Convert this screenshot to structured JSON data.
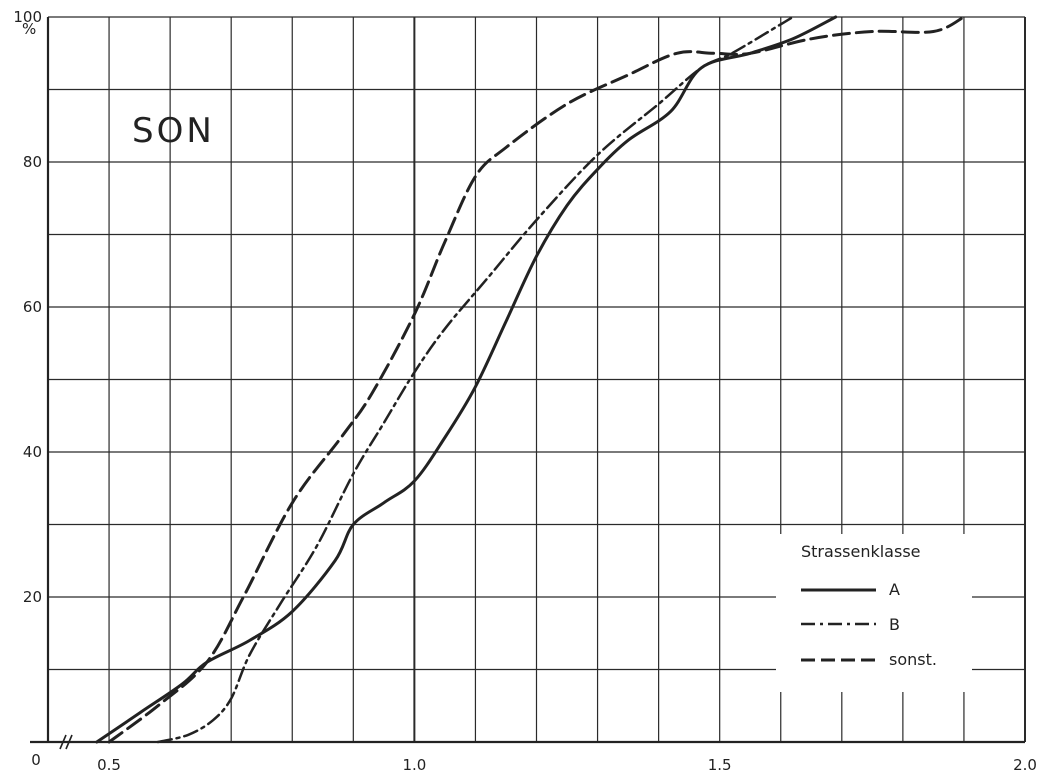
{
  "chart_data": {
    "type": "line",
    "tag": "SON",
    "y_unit": "%",
    "xlim": [
      0.4,
      2.0
    ],
    "ylim": [
      0,
      100
    ],
    "x_ticks": [
      "0.5",
      "1.0",
      "1.5",
      "2.0"
    ],
    "x_origin_label": "0",
    "y_ticks": [
      "20",
      "40",
      "60",
      "80",
      "100"
    ],
    "y_origin_label": "0",
    "grid": true,
    "legend_position": "bottom-right",
    "legend_title": "Strassenklasse",
    "series": [
      {
        "name": "A",
        "style": "solid",
        "points": [
          [
            0.48,
            0
          ],
          [
            0.55,
            4
          ],
          [
            0.62,
            8
          ],
          [
            0.66,
            11
          ],
          [
            0.73,
            14
          ],
          [
            0.8,
            18
          ],
          [
            0.87,
            25
          ],
          [
            0.9,
            30
          ],
          [
            0.95,
            33
          ],
          [
            1.0,
            36
          ],
          [
            1.05,
            42
          ],
          [
            1.1,
            49
          ],
          [
            1.15,
            58
          ],
          [
            1.2,
            67
          ],
          [
            1.25,
            74
          ],
          [
            1.3,
            79
          ],
          [
            1.35,
            83
          ],
          [
            1.42,
            87
          ],
          [
            1.47,
            93
          ],
          [
            1.55,
            95
          ],
          [
            1.62,
            97
          ],
          [
            1.69,
            100
          ]
        ]
      },
      {
        "name": "B",
        "style": "dash-dot",
        "points": [
          [
            0.58,
            0
          ],
          [
            0.63,
            1
          ],
          [
            0.67,
            3
          ],
          [
            0.7,
            6
          ],
          [
            0.73,
            12
          ],
          [
            0.78,
            19
          ],
          [
            0.84,
            27
          ],
          [
            0.9,
            37
          ],
          [
            0.95,
            44
          ],
          [
            1.0,
            51
          ],
          [
            1.05,
            57
          ],
          [
            1.12,
            64
          ],
          [
            1.2,
            72
          ],
          [
            1.3,
            81
          ],
          [
            1.4,
            88
          ],
          [
            1.47,
            93
          ],
          [
            1.52,
            95
          ],
          [
            1.6,
            99
          ],
          [
            1.62,
            100
          ]
        ]
      },
      {
        "name": "sonst.",
        "style": "dashed",
        "points": [
          [
            0.5,
            0
          ],
          [
            0.58,
            5
          ],
          [
            0.66,
            11
          ],
          [
            0.72,
            20
          ],
          [
            0.8,
            33
          ],
          [
            0.88,
            42
          ],
          [
            0.93,
            48
          ],
          [
            1.0,
            59
          ],
          [
            1.05,
            69
          ],
          [
            1.1,
            78
          ],
          [
            1.15,
            82
          ],
          [
            1.25,
            88
          ],
          [
            1.35,
            92
          ],
          [
            1.43,
            95
          ],
          [
            1.49,
            95
          ],
          [
            1.55,
            95
          ],
          [
            1.65,
            97
          ],
          [
            1.75,
            98
          ],
          [
            1.85,
            98
          ],
          [
            1.9,
            100
          ]
        ]
      }
    ]
  },
  "colors": {
    "ink": "#222222",
    "grid": "#2a2a2a",
    "background": "#ffffff"
  }
}
